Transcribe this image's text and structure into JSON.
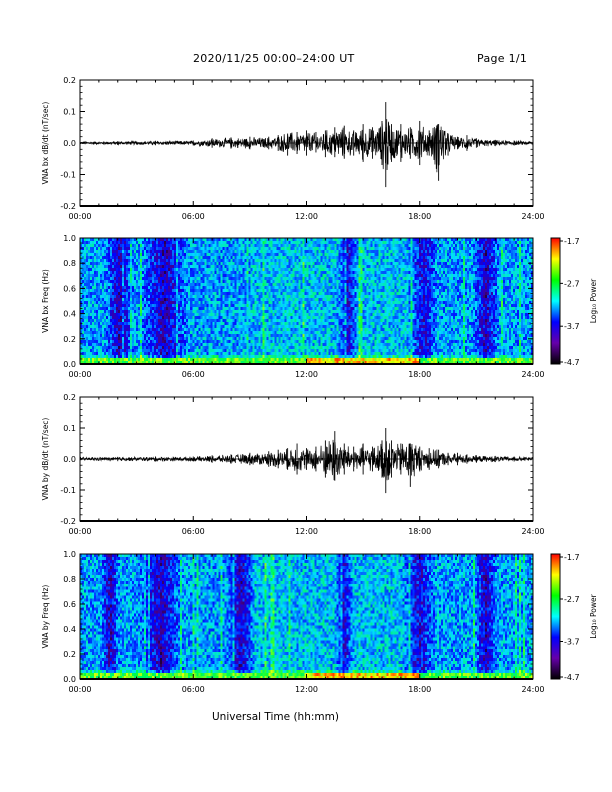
{
  "header": {
    "date_range": "2020/11/25  00:00–24:00 UT",
    "page": "Page 1/1"
  },
  "x_axis_label": "Universal Time (hh:mm)",
  "colorbar": {
    "label": "Log₁₀ Power",
    "ticks": [
      "-1.7",
      "-2.7",
      "-3.7",
      "-4.7"
    ],
    "colors": [
      "#ff0000",
      "#ffff00",
      "#00ff00",
      "#00ffff",
      "#0000ff",
      "#6600aa",
      "#000000"
    ]
  },
  "chart_data": [
    {
      "type": "line",
      "id": "panel1",
      "ylabel": "VNA bx dB/dt (nT/sec)",
      "xticks": [
        "00:00",
        "06:00",
        "12:00",
        "18:00",
        "24:00"
      ],
      "yticks": [
        "0.2",
        "0.1",
        "0.0",
        "-0.1",
        "-0.2"
      ],
      "xlim": [
        0,
        24
      ],
      "ylim": [
        -0.2,
        0.2
      ],
      "series": [
        {
          "x": [
            0,
            2,
            4,
            6,
            7,
            8,
            9,
            10,
            10.5,
            11,
            11.5,
            12,
            12.5,
            13,
            13.5,
            14,
            14.5,
            15,
            15.5,
            16,
            16.2,
            16.5,
            17,
            17.5,
            18,
            18.5,
            19,
            19.5,
            20,
            20.5,
            21,
            22,
            23,
            24
          ],
          "y_max": [
            0.005,
            0.006,
            0.007,
            0.008,
            0.015,
            0.018,
            0.02,
            0.02,
            0.025,
            0.03,
            0.035,
            0.04,
            0.035,
            0.04,
            0.05,
            0.055,
            0.04,
            0.06,
            0.05,
            0.07,
            0.13,
            0.06,
            0.06,
            0.05,
            0.07,
            0.04,
            0.06,
            0.03,
            0.02,
            0.025,
            0.015,
            0.01,
            0.008,
            0.006
          ],
          "y_min": [
            -0.005,
            -0.006,
            -0.007,
            -0.008,
            -0.015,
            -0.018,
            -0.02,
            -0.02,
            -0.025,
            -0.04,
            -0.035,
            -0.04,
            -0.03,
            -0.045,
            -0.045,
            -0.05,
            -0.04,
            -0.06,
            -0.05,
            -0.07,
            -0.14,
            -0.06,
            -0.06,
            -0.05,
            -0.07,
            -0.04,
            -0.12,
            -0.04,
            -0.02,
            -0.025,
            -0.015,
            -0.01,
            -0.008,
            -0.006
          ]
        }
      ]
    },
    {
      "type": "heatmap",
      "id": "panel2",
      "ylabel": "VNA bx Freq (Hz)",
      "xticks": [
        "00:00",
        "06:00",
        "12:00",
        "18:00",
        "24:00"
      ],
      "yticks": [
        "1.0",
        "0.8",
        "0.6",
        "0.4",
        "0.2",
        "0.0"
      ],
      "xlim": [
        0,
        24
      ],
      "ylim": [
        0,
        1.0
      ],
      "zlim": [
        -4.7,
        -1.7
      ]
    },
    {
      "type": "line",
      "id": "panel3",
      "ylabel": "VNA by dB/dt (nT/sec)",
      "xticks": [
        "00:00",
        "06:00",
        "12:00",
        "18:00",
        "24:00"
      ],
      "yticks": [
        "0.2",
        "0.1",
        "0.0",
        "-0.1",
        "-0.2"
      ],
      "xlim": [
        0,
        24
      ],
      "ylim": [
        -0.2,
        0.2
      ],
      "series": [
        {
          "x": [
            0,
            2,
            4,
            6,
            7,
            8,
            9,
            10,
            10.5,
            11,
            11.5,
            12,
            12.5,
            13,
            13.5,
            14,
            14.5,
            15,
            15.5,
            16,
            16.2,
            16.5,
            17,
            17.5,
            18,
            18.5,
            19,
            19.5,
            20,
            20.5,
            21,
            22,
            23,
            24
          ],
          "y_max": [
            0.006,
            0.007,
            0.008,
            0.008,
            0.012,
            0.015,
            0.02,
            0.025,
            0.03,
            0.035,
            0.05,
            0.035,
            0.04,
            0.06,
            0.09,
            0.05,
            0.04,
            0.05,
            0.04,
            0.06,
            0.1,
            0.06,
            0.05,
            0.05,
            0.04,
            0.035,
            0.03,
            0.02,
            0.02,
            0.015,
            0.012,
            0.01,
            0.008,
            0.007
          ],
          "y_min": [
            -0.006,
            -0.007,
            -0.008,
            -0.008,
            -0.012,
            -0.015,
            -0.02,
            -0.025,
            -0.03,
            -0.035,
            -0.05,
            -0.035,
            -0.04,
            -0.06,
            -0.07,
            -0.05,
            -0.04,
            -0.05,
            -0.04,
            -0.06,
            -0.11,
            -0.06,
            -0.05,
            -0.09,
            -0.04,
            -0.035,
            -0.03,
            -0.02,
            -0.02,
            -0.015,
            -0.012,
            -0.01,
            -0.008,
            -0.007
          ]
        }
      ]
    },
    {
      "type": "heatmap",
      "id": "panel4",
      "ylabel": "VNA by Freq (Hz)",
      "xticks": [
        "00:00",
        "06:00",
        "12:00",
        "18:00",
        "24:00"
      ],
      "yticks": [
        "1.0",
        "0.8",
        "0.6",
        "0.4",
        "0.2",
        "0.0"
      ],
      "xlim": [
        0,
        24
      ],
      "ylim": [
        0,
        1.0
      ],
      "zlim": [
        -4.7,
        -1.7
      ]
    }
  ]
}
